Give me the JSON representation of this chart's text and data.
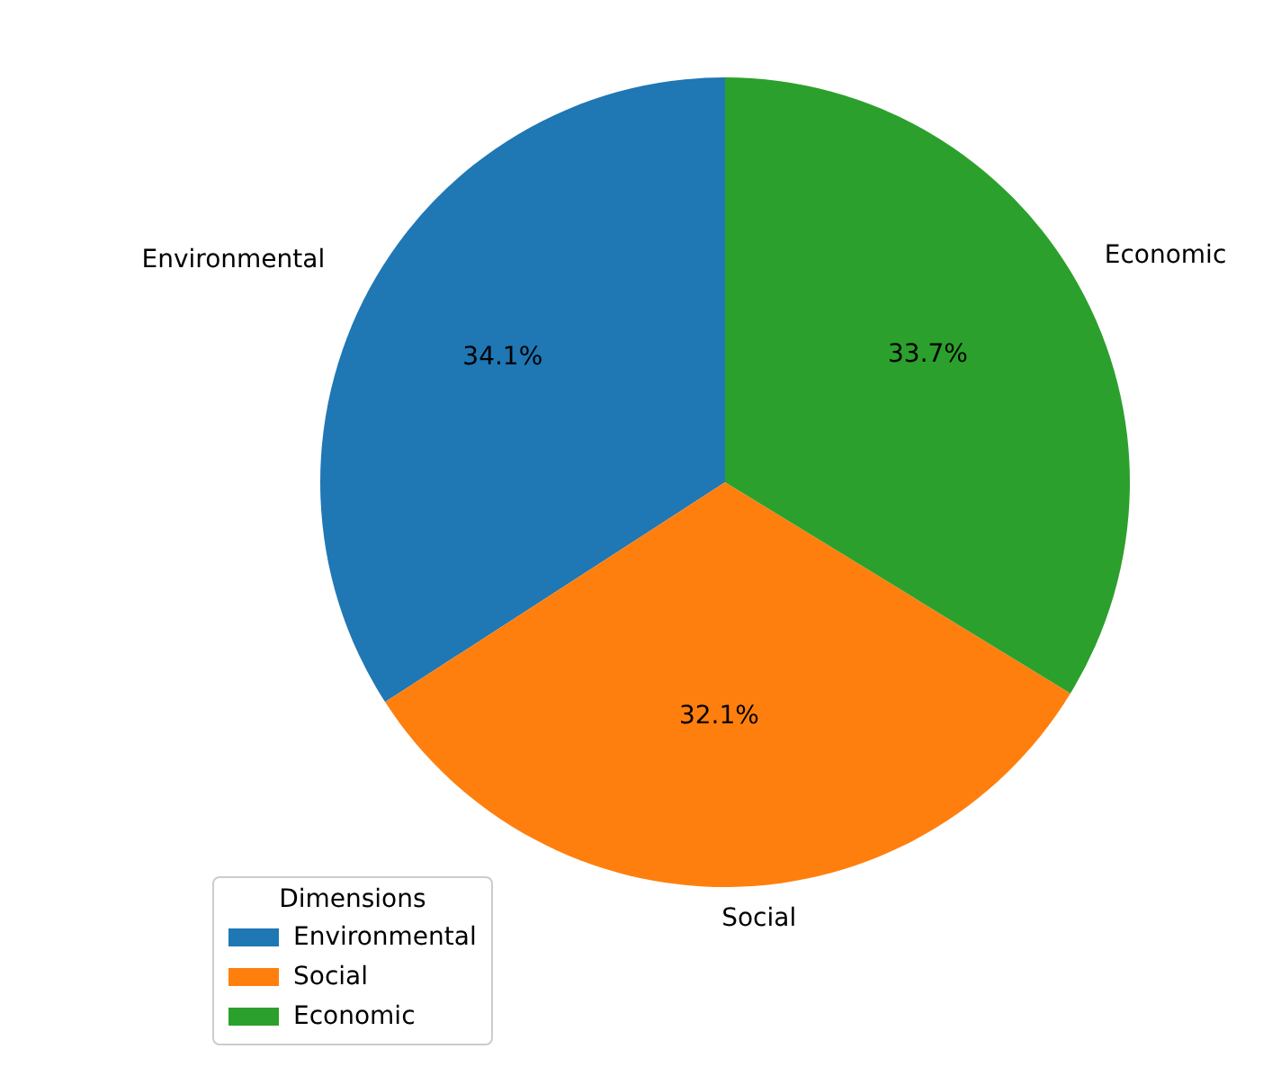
{
  "chart_data": {
    "type": "pie",
    "categories": [
      "Environmental",
      "Social",
      "Economic"
    ],
    "values": [
      34.1,
      32.1,
      33.7
    ],
    "value_labels": [
      "34.1%",
      "32.1%",
      "33.7%"
    ],
    "colors": [
      "#1f77b4",
      "#ff7f0e",
      "#2ca02c"
    ],
    "legend_title": "Dimensions",
    "legend": "bottom left"
  }
}
